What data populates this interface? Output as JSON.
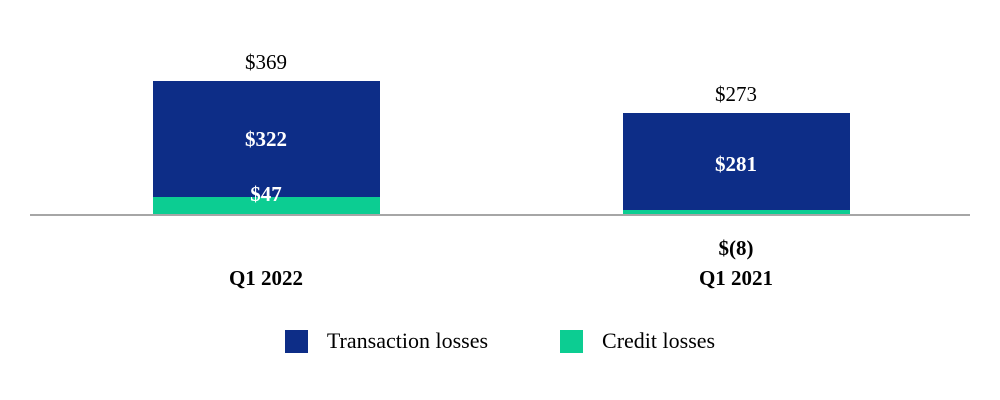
{
  "chart_data": {
    "type": "bar",
    "stacked": true,
    "title": "",
    "xlabel": "",
    "ylabel": "",
    "grid": false,
    "background": "#ffffff",
    "axis_color": "#a6a6a6",
    "legend_position": "bottom",
    "categories": [
      "Q1 2022",
      "Q1 2021"
    ],
    "series": [
      {
        "name": "Transaction losses",
        "color": "#0d2d87",
        "values": [
          322,
          281
        ],
        "data_labels": [
          "$322",
          "$281"
        ],
        "data_label_colors": [
          "#ffffff",
          "#ffffff"
        ]
      },
      {
        "name": "Credit losses",
        "color": "#0ccd92",
        "values": [
          47,
          -8
        ],
        "data_labels": [
          "$47",
          "$(8)"
        ],
        "data_label_colors": [
          "#ffffff",
          "#000000"
        ]
      }
    ],
    "stack_order_bottom_to_top": [
      "Credit losses",
      "Transaction losses"
    ],
    "totals": [
      369,
      273
    ],
    "total_labels": [
      "$369",
      "$273"
    ]
  }
}
